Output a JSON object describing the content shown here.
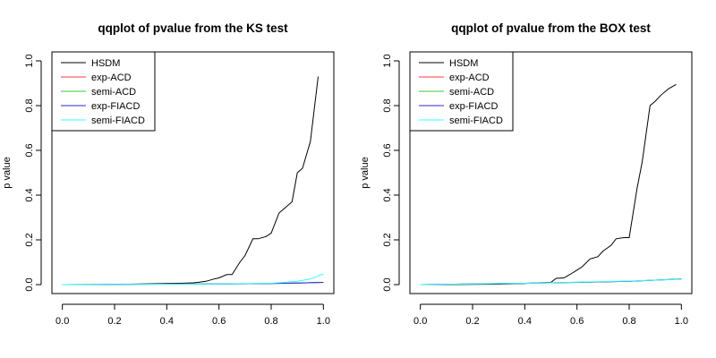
{
  "chart_data": [
    {
      "type": "line",
      "title": "qqplot of pvalue from the KS test",
      "xlabel": "",
      "ylabel": "p value",
      "xlim": [
        0,
        1
      ],
      "ylim": [
        0,
        1
      ],
      "xticks": [
        "0.0",
        "0.2",
        "0.4",
        "0.6",
        "0.8",
        "1.0"
      ],
      "yticks": [
        "0.0",
        "0.2",
        "0.4",
        "0.6",
        "0.8",
        "1.0"
      ],
      "legend_position": "top-left",
      "series": [
        {
          "name": "HSDM",
          "color": "#000000",
          "x": [
            0,
            0.05,
            0.1,
            0.15,
            0.2,
            0.25,
            0.3,
            0.35,
            0.4,
            0.45,
            0.5,
            0.52,
            0.55,
            0.58,
            0.6,
            0.63,
            0.65,
            0.68,
            0.7,
            0.73,
            0.75,
            0.78,
            0.8,
            0.83,
            0.85,
            0.88,
            0.9,
            0.92,
            0.95,
            0.98
          ],
          "y": [
            0,
            0,
            0,
            0,
            0.001,
            0.002,
            0.003,
            0.004,
            0.005,
            0.006,
            0.008,
            0.01,
            0.015,
            0.025,
            0.03,
            0.045,
            0.045,
            0.1,
            0.13,
            0.205,
            0.205,
            0.215,
            0.23,
            0.32,
            0.34,
            0.37,
            0.5,
            0.52,
            0.64,
            0.93
          ]
        },
        {
          "name": "exp-ACD",
          "color": "#ff3b3b",
          "x": [
            0,
            0.2,
            0.4,
            0.6,
            0.8,
            0.9,
            1.0
          ],
          "y": [
            0,
            0.001,
            0.002,
            0.003,
            0.005,
            0.007,
            0.01
          ]
        },
        {
          "name": "semi-ACD",
          "color": "#34c934",
          "x": [
            0,
            0.2,
            0.4,
            0.6,
            0.8,
            0.9,
            1.0
          ],
          "y": [
            0,
            0.001,
            0.002,
            0.003,
            0.005,
            0.007,
            0.01
          ]
        },
        {
          "name": "exp-FIACD",
          "color": "#2a2adb",
          "x": [
            0,
            0.2,
            0.4,
            0.6,
            0.8,
            0.9,
            1.0
          ],
          "y": [
            0,
            0.001,
            0.002,
            0.003,
            0.005,
            0.007,
            0.01
          ]
        },
        {
          "name": "semi-FIACD",
          "color": "#33ffff",
          "x": [
            0,
            0.2,
            0.4,
            0.6,
            0.8,
            0.85,
            0.9,
            0.95,
            1.0
          ],
          "y": [
            0,
            0.001,
            0.002,
            0.003,
            0.006,
            0.01,
            0.015,
            0.025,
            0.048
          ]
        }
      ]
    },
    {
      "type": "line",
      "title": "qqplot of pvalue from the BOX test",
      "xlabel": "",
      "ylabel": "p value",
      "xlim": [
        0,
        1
      ],
      "ylim": [
        0,
        1
      ],
      "xticks": [
        "0.0",
        "0.2",
        "0.4",
        "0.6",
        "0.8",
        "1.0"
      ],
      "yticks": [
        "0.0",
        "0.2",
        "0.4",
        "0.6",
        "0.8",
        "1.0"
      ],
      "legend_position": "top-left",
      "series": [
        {
          "name": "HSDM",
          "color": "#000000",
          "x": [
            0,
            0.1,
            0.2,
            0.3,
            0.4,
            0.45,
            0.5,
            0.52,
            0.55,
            0.58,
            0.6,
            0.62,
            0.65,
            0.68,
            0.7,
            0.73,
            0.75,
            0.78,
            0.8,
            0.83,
            0.85,
            0.88,
            0.9,
            0.92,
            0.95,
            0.98
          ],
          "y": [
            0,
            0,
            0.001,
            0.002,
            0.005,
            0.008,
            0.01,
            0.028,
            0.03,
            0.05,
            0.065,
            0.08,
            0.115,
            0.125,
            0.15,
            0.175,
            0.205,
            0.21,
            0.21,
            0.43,
            0.55,
            0.8,
            0.82,
            0.845,
            0.875,
            0.895
          ]
        },
        {
          "name": "exp-ACD",
          "color": "#ff3b3b",
          "x": [
            0,
            0.2,
            0.4,
            0.6,
            0.8,
            0.9,
            1.0
          ],
          "y": [
            0,
            0.003,
            0.006,
            0.01,
            0.015,
            0.02,
            0.025
          ]
        },
        {
          "name": "semi-ACD",
          "color": "#34c934",
          "x": [
            0,
            0.2,
            0.4,
            0.6,
            0.8,
            0.9,
            1.0
          ],
          "y": [
            0,
            0.003,
            0.006,
            0.01,
            0.015,
            0.02,
            0.025
          ]
        },
        {
          "name": "exp-FIACD",
          "color": "#2a2adb",
          "x": [
            0,
            0.2,
            0.4,
            0.6,
            0.8,
            0.9,
            1.0
          ],
          "y": [
            0,
            0.003,
            0.006,
            0.01,
            0.015,
            0.02,
            0.025
          ]
        },
        {
          "name": "semi-FIACD",
          "color": "#33ffff",
          "x": [
            0,
            0.2,
            0.4,
            0.6,
            0.8,
            0.9,
            1.0
          ],
          "y": [
            0,
            0.003,
            0.006,
            0.011,
            0.016,
            0.02,
            0.024
          ]
        }
      ]
    }
  ]
}
